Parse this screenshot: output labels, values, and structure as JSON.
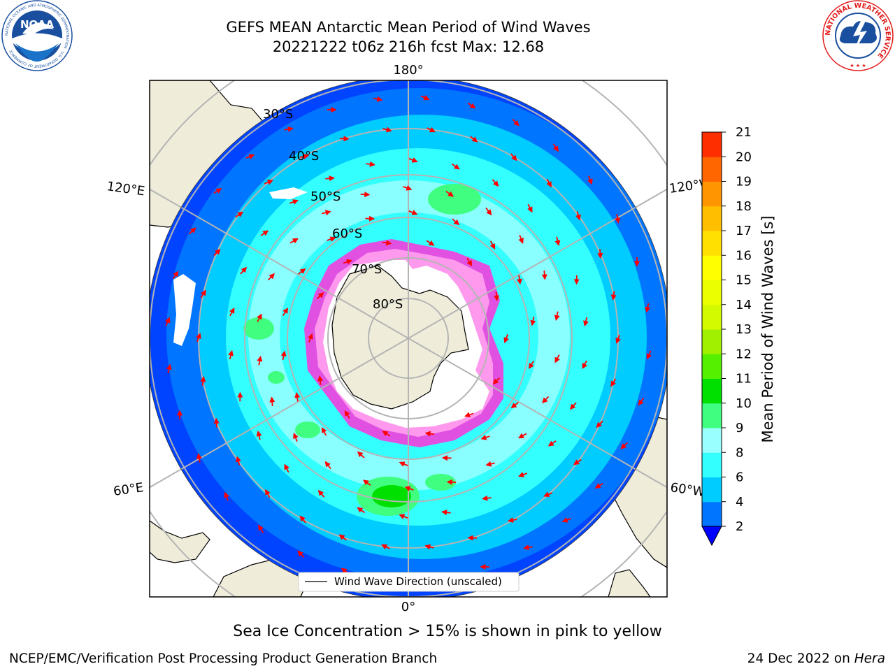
{
  "title": {
    "line1": "GEFS MEAN Antarctic Mean Period of Wind Waves",
    "line2": "20221222 t06z 216h fcst   Max: 12.68"
  },
  "logos": {
    "noaa": {
      "text": "NOAA",
      "ring_text": "NATIONAL OCEANIC AND ATMOSPHERIC ADMINISTRATION · U.S. DEPARTMENT OF COMMERCE",
      "color": "#1a4fa0"
    },
    "nws": {
      "ring_text": "NATIONAL WEATHER SERVICE",
      "color": "#e21a1a"
    }
  },
  "map": {
    "projection": "south-polar-stereographic",
    "latitude_labels": [
      "30°S",
      "40°S",
      "50°S",
      "60°S",
      "70°S",
      "80°S"
    ],
    "longitude_labels": {
      "top": "180°",
      "bottom": "0°",
      "left_upper": "120°E",
      "left_lower": "60°E",
      "right_upper": "120°W",
      "right_lower": "60°W"
    },
    "legend": "Wind Wave Direction (unscaled)",
    "colors": {
      "land": "#efedda",
      "ice_pink": "#ff33dd",
      "ice_white": "#ffffff",
      "arrow": "#ff0000",
      "grid": "#b4b4b4"
    }
  },
  "colorbar": {
    "label": "Mean Period of Wind Waves [s]",
    "ticks": [
      "2",
      "4",
      "6",
      "8",
      "9",
      "10",
      "11",
      "12",
      "13",
      "14",
      "15",
      "16",
      "17",
      "18",
      "19",
      "20",
      "21"
    ],
    "colors": [
      "#0075ff",
      "#00ccff",
      "#33ffff",
      "#99ffff",
      "#40ff80",
      "#00e000",
      "#55f000",
      "#a0f000",
      "#d4fa00",
      "#ecff00",
      "#ffff00",
      "#ffe000",
      "#ffbe00",
      "#ff9500",
      "#ff6600",
      "#ff2e00",
      "#ff0000"
    ],
    "extend_color": "#0000ff"
  },
  "caption": "Sea Ice Concentration > 15% is shown in pink to yellow",
  "footer": {
    "left": "NCEP/EMC/Verification Post Processing Product Generation Branch",
    "right_prefix": "24 Dec 2022 on ",
    "right_host": "Hera"
  }
}
